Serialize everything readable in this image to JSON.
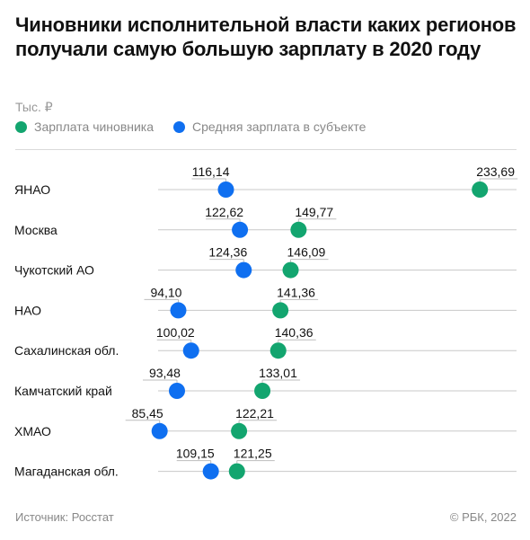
{
  "title": "Чиновники исполнительной власти каких регионов получали самую большую зарплату в 2020 году",
  "unit": "Тыс. ₽",
  "legend": [
    {
      "label": "Зарплата чиновника",
      "color": "#13a56f"
    },
    {
      "label": "Средняя зарплата в субъекте",
      "color": "#0f6ff0"
    }
  ],
  "footer": {
    "source": "Источник: Росстат",
    "copyright": "© РБК, 2022"
  },
  "chart_data": {
    "type": "dumbbell",
    "value_format": "comma-decimal",
    "series": [
      {
        "key": "official",
        "name": "Зарплата чиновника",
        "color": "#13a56f"
      },
      {
        "key": "average",
        "name": "Средняя зарплата в субъекте",
        "color": "#0f6ff0"
      }
    ],
    "rows": [
      {
        "region": "ЯНАО",
        "official": 233.69,
        "average": 116.14
      },
      {
        "region": "Москва",
        "official": 149.77,
        "average": 122.62
      },
      {
        "region": "Чукотский АО",
        "official": 146.09,
        "average": 124.36
      },
      {
        "region": "НАО",
        "official": 141.36,
        "average": 94.1
      },
      {
        "region": "Сахалинская обл.",
        "official": 140.36,
        "average": 100.02
      },
      {
        "region": "Камчатский край",
        "official": 133.01,
        "average": 93.48
      },
      {
        "region": "ХМАО",
        "official": 122.21,
        "average": 85.45
      },
      {
        "region": "Магаданская обл.",
        "official": 121.25,
        "average": 109.15
      }
    ]
  }
}
